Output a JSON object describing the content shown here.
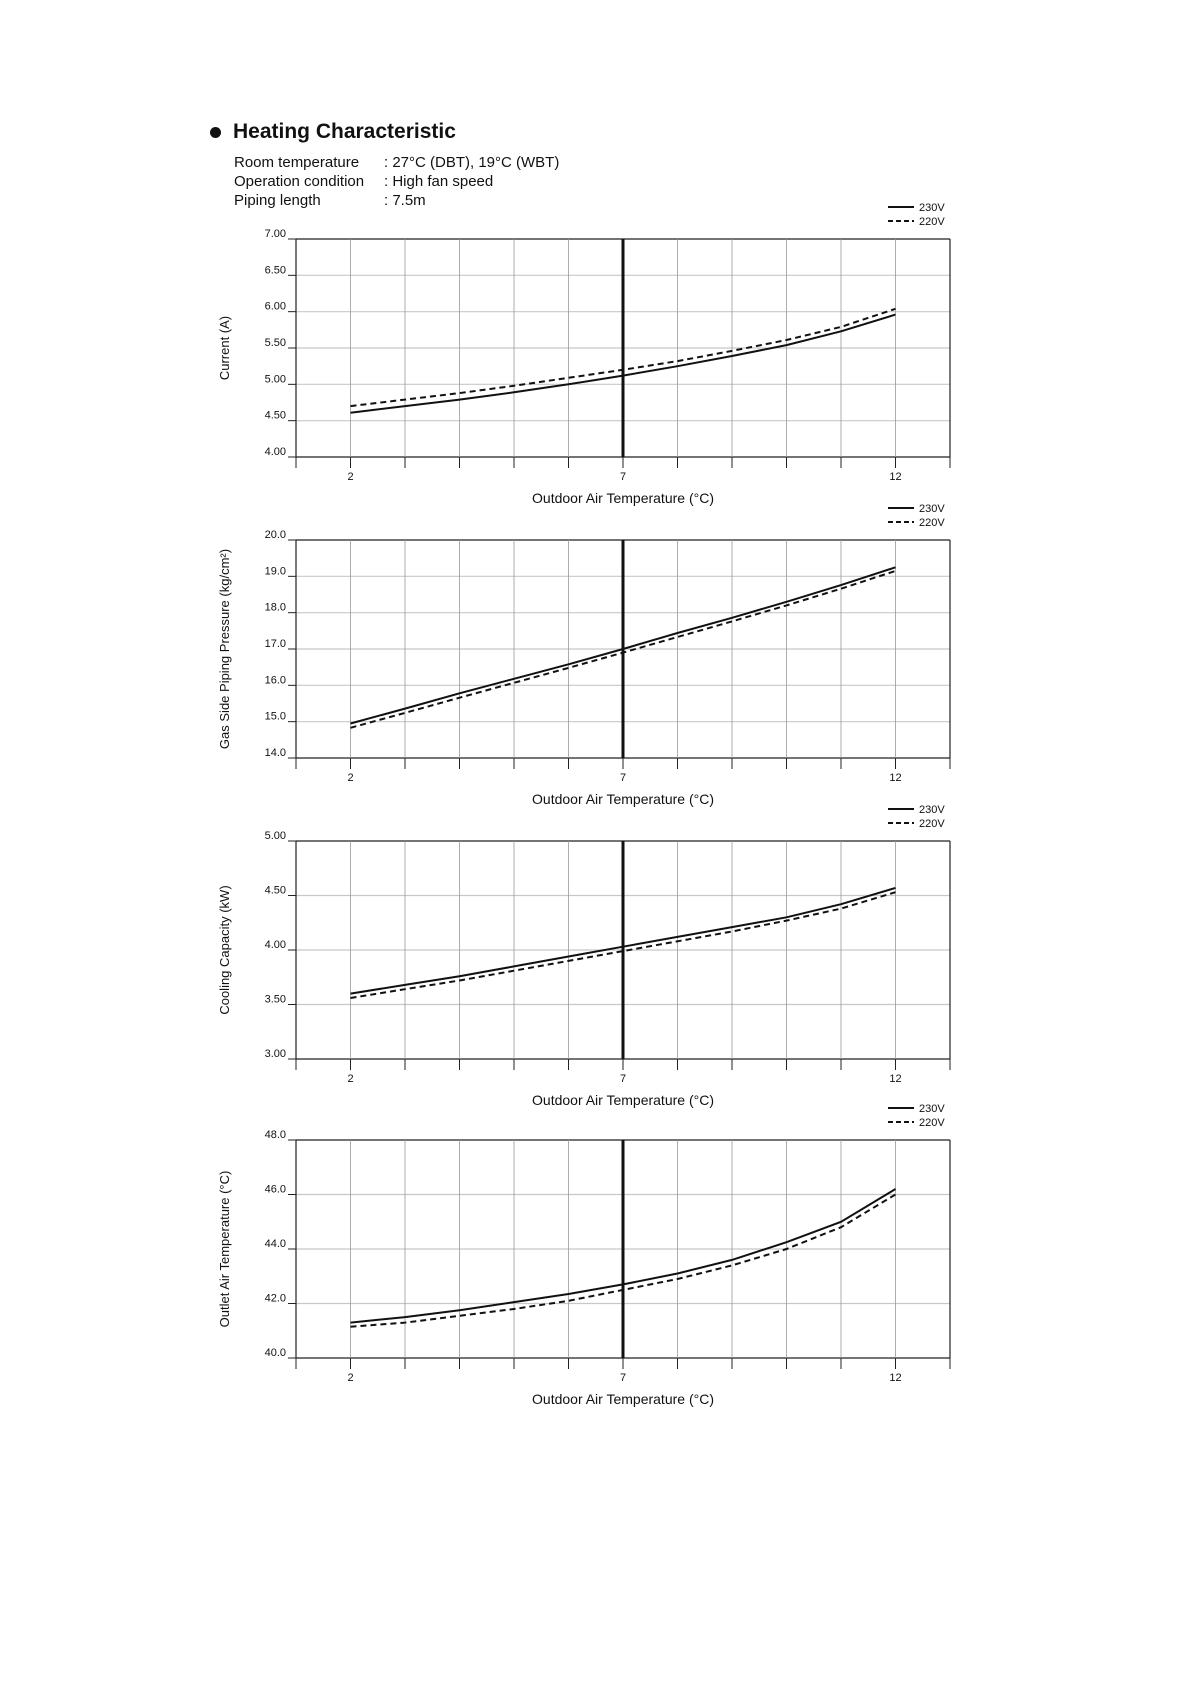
{
  "header": {
    "title": "Heating Characteristic",
    "conditions": [
      {
        "label": "Room temperature",
        "value": ": 27°C (DBT), 19°C (WBT)"
      },
      {
        "label": "Operation condition",
        "value": ": High fan speed"
      },
      {
        "label": "Piping length",
        "value": ": 7.5m"
      }
    ]
  },
  "chart_data": [
    {
      "type": "line",
      "title": "",
      "xlabel": "Outdoor Air Temperature (°C)",
      "ylabel": "Current (A)",
      "xlim": [
        1,
        13
      ],
      "xticks": [
        "2",
        "7",
        "12"
      ],
      "ylim": [
        4.0,
        7.0
      ],
      "yticks": [
        "4.00",
        "4.50",
        "5.00",
        "5.50",
        "6.00",
        "6.50",
        "7.00"
      ],
      "legend": "top-right",
      "x": [
        2,
        3,
        4,
        5,
        6,
        7,
        8,
        9,
        10,
        11,
        12
      ],
      "series": [
        {
          "name": "230V",
          "style": "solid",
          "values": [
            4.61,
            4.7,
            4.79,
            4.89,
            5.0,
            5.12,
            5.25,
            5.39,
            5.54,
            5.73,
            5.96
          ]
        },
        {
          "name": "220V",
          "style": "dashed",
          "values": [
            4.7,
            4.79,
            4.88,
            4.98,
            5.09,
            5.2,
            5.32,
            5.46,
            5.61,
            5.79,
            6.04
          ]
        }
      ]
    },
    {
      "type": "line",
      "title": "",
      "xlabel": "Outdoor Air Temperature (°C)",
      "ylabel": "Gas Side Piping Pressure (kg/cm²)",
      "xlim": [
        1,
        13
      ],
      "xticks": [
        "2",
        "7",
        "12"
      ],
      "ylim": [
        14.0,
        20.0
      ],
      "yticks": [
        "14.0",
        "15.0",
        "16.0",
        "17.0",
        "18.0",
        "19.0",
        "20.0"
      ],
      "legend": "top-right",
      "x": [
        2,
        3,
        4,
        5,
        6,
        7,
        8,
        9,
        10,
        11,
        12
      ],
      "series": [
        {
          "name": "230V",
          "style": "solid",
          "values": [
            14.95,
            15.36,
            15.78,
            16.18,
            16.58,
            17.0,
            17.44,
            17.86,
            18.3,
            18.76,
            19.25
          ]
        },
        {
          "name": "220V",
          "style": "dashed",
          "values": [
            14.83,
            15.24,
            15.66,
            16.07,
            16.48,
            16.9,
            17.33,
            17.76,
            18.2,
            18.66,
            19.15
          ]
        }
      ]
    },
    {
      "type": "line",
      "title": "",
      "xlabel": "Outdoor Air Temperature (°C)",
      "ylabel": "Cooling Capacity (kW)",
      "xlim": [
        1,
        13
      ],
      "xticks": [
        "2",
        "7",
        "12"
      ],
      "ylim": [
        3.0,
        5.0
      ],
      "yticks": [
        "3.00",
        "3.50",
        "4.00",
        "4.50",
        "5.00"
      ],
      "legend": "top-right",
      "x": [
        2,
        3,
        4,
        5,
        6,
        7,
        8,
        9,
        10,
        11,
        12
      ],
      "series": [
        {
          "name": "230V",
          "style": "solid",
          "values": [
            3.6,
            3.68,
            3.76,
            3.85,
            3.94,
            4.03,
            4.12,
            4.21,
            4.3,
            4.42,
            4.57
          ]
        },
        {
          "name": "220V",
          "style": "dashed",
          "values": [
            3.56,
            3.64,
            3.72,
            3.81,
            3.9,
            3.99,
            4.08,
            4.17,
            4.27,
            4.38,
            4.53
          ]
        }
      ]
    },
    {
      "type": "line",
      "title": "",
      "xlabel": "Outdoor Air Temperature (°C)",
      "ylabel": "Outlet Air Temperature (°C)",
      "xlim": [
        1,
        13
      ],
      "xticks": [
        "2",
        "7",
        "12"
      ],
      "ylim": [
        40.0,
        48.0
      ],
      "yticks": [
        "40.0",
        "42.0",
        "44.0",
        "46.0",
        "48.0"
      ],
      "legend": "top-right",
      "x": [
        2,
        3,
        4,
        5,
        6,
        7,
        8,
        9,
        10,
        11,
        12
      ],
      "series": [
        {
          "name": "230V",
          "style": "solid",
          "values": [
            41.3,
            41.5,
            41.75,
            42.05,
            42.35,
            42.7,
            43.1,
            43.6,
            44.25,
            45.0,
            46.2
          ]
        },
        {
          "name": "220V",
          "style": "dashed",
          "values": [
            41.15,
            41.3,
            41.55,
            41.8,
            42.1,
            42.5,
            42.9,
            43.4,
            44.0,
            44.8,
            46.0
          ]
        }
      ]
    }
  ]
}
